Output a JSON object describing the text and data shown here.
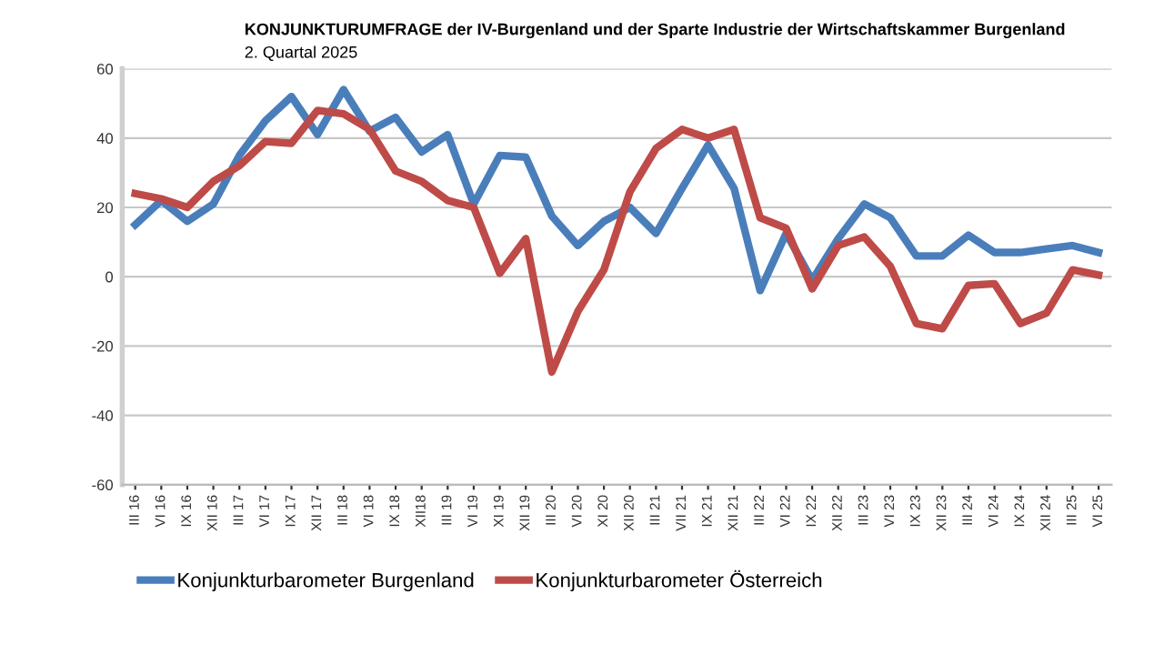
{
  "chart_data": {
    "type": "line",
    "title": "KONJUNKTURUMFRAGE der IV-Burgenland und der Sparte Industrie der Wirtschaftskammer Burgenland",
    "subtitle": "2. Quartal 2025",
    "categories": [
      "III 16",
      "VI 16",
      "IX 16",
      "XII 16",
      "III 17",
      "VI 17",
      "IX 17",
      "XII 17",
      "III 18",
      "VI 18",
      "IX 18",
      "XII18",
      "III 19",
      "VI 19",
      "XI 19",
      "XII 19",
      "III 20",
      "VI 20",
      "XI 20",
      "XII 20",
      "III 21",
      "VII 21",
      "IX 21",
      "XII 21",
      "III 22",
      "VI 22",
      "IX 22",
      "XII 22",
      "III 23",
      "VI 23",
      "IX 23",
      "XII 23",
      "III 24",
      "VI 24",
      "IX 24",
      "XII 24",
      "III 25",
      "VI 25"
    ],
    "series": [
      {
        "name": "Konjunkturbarometer Burgenland",
        "color": "#4a7ebb",
        "values": [
          15,
          22,
          16,
          21,
          35,
          45,
          52,
          41,
          54,
          42,
          46,
          36,
          41,
          21,
          35,
          34.5,
          17.5,
          9,
          16,
          20,
          12.5,
          25.5,
          38,
          25.5,
          -4,
          12.5,
          -1,
          11,
          21,
          17,
          6,
          6,
          12,
          7,
          7,
          8,
          9,
          7
        ]
      },
      {
        "name": "Konjunkturbarometer Österreich",
        "color": "#be4b48",
        "values": [
          24,
          22.5,
          20,
          27.5,
          32,
          39,
          38.5,
          48,
          47,
          42.5,
          30.5,
          27.5,
          22,
          20,
          1,
          11,
          -27.5,
          -10,
          2,
          24.5,
          37,
          42.5,
          40,
          42.5,
          17,
          14,
          -3.5,
          9,
          11.5,
          3,
          -13.5,
          -15,
          -2.5,
          -2,
          -13.5,
          -10.5,
          2,
          0.5
        ]
      }
    ],
    "ylim": [
      -60,
      60
    ],
    "yticks": [
      -60,
      -40,
      -20,
      0,
      20,
      40,
      60
    ],
    "grid": "y",
    "legend": "bottom",
    "marker": "none",
    "line_style": "solid"
  }
}
